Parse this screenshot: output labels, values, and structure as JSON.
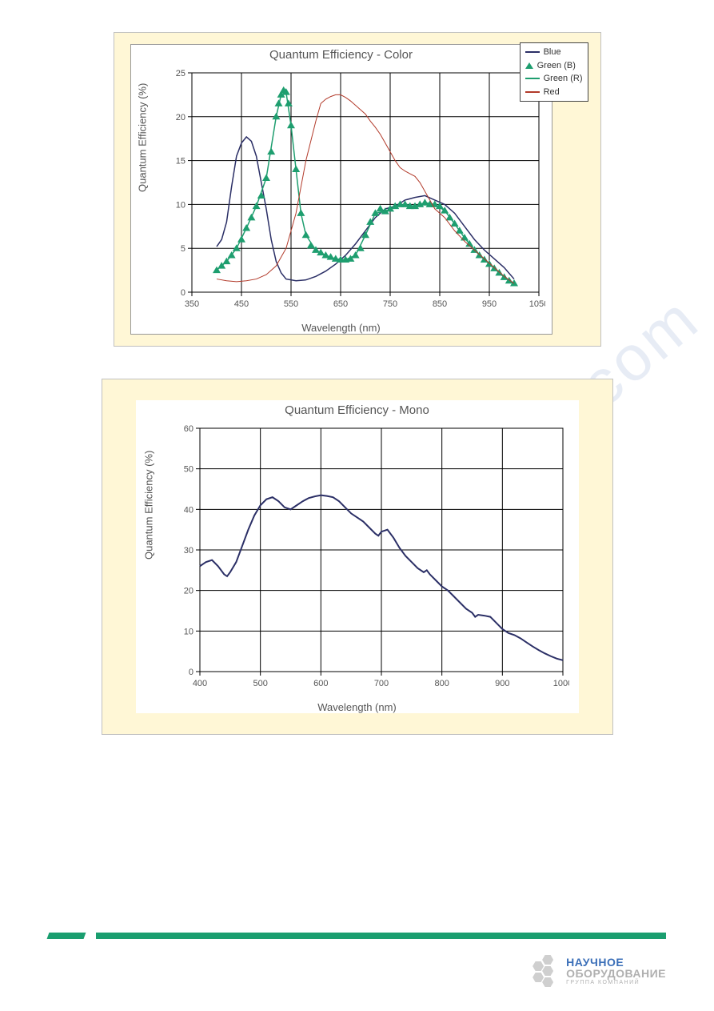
{
  "chart1": {
    "type": "line",
    "title": "Quantum Efficiency - Color",
    "xlabel": "Wavelength (nm)",
    "ylabel": "Quantum Efficiency (%)",
    "title_fontsize": 15,
    "label_fontsize": 13,
    "tick_fontsize": 11,
    "panel_bg": "#fff7d6",
    "plot_bg": "#ffffff",
    "grid_color": "#000000",
    "grid_width": 1,
    "xlim": [
      350,
      1050
    ],
    "ylim": [
      0,
      25
    ],
    "xtick_step": 100,
    "ytick_step": 5,
    "legend": {
      "position": "top-right",
      "items": [
        {
          "label": "Blue",
          "swatch": "line",
          "color": "#2b2f66"
        },
        {
          "label": "Green (B)",
          "swatch": "triangle",
          "color": "#1e9e6f"
        },
        {
          "label": "Green (R)",
          "swatch": "line",
          "color": "#1e9e6f"
        },
        {
          "label": "Red",
          "swatch": "line",
          "color": "#b23a2a"
        }
      ]
    },
    "series": {
      "Blue": {
        "type": "line",
        "color": "#2b2f66",
        "line_width": 1.5,
        "data": [
          [
            400,
            5.2
          ],
          [
            410,
            6.0
          ],
          [
            420,
            8.0
          ],
          [
            430,
            12.0
          ],
          [
            440,
            15.5
          ],
          [
            450,
            17.0
          ],
          [
            460,
            17.7
          ],
          [
            470,
            17.2
          ],
          [
            480,
            15.5
          ],
          [
            490,
            12.5
          ],
          [
            500,
            9.5
          ],
          [
            510,
            6.0
          ],
          [
            520,
            3.5
          ],
          [
            530,
            2.2
          ],
          [
            540,
            1.5
          ],
          [
            560,
            1.3
          ],
          [
            580,
            1.4
          ],
          [
            600,
            1.8
          ],
          [
            620,
            2.4
          ],
          [
            640,
            3.2
          ],
          [
            660,
            4.2
          ],
          [
            680,
            5.5
          ],
          [
            700,
            7.0
          ],
          [
            720,
            8.5
          ],
          [
            740,
            9.5
          ],
          [
            760,
            9.8
          ],
          [
            780,
            10.5
          ],
          [
            800,
            10.8
          ],
          [
            820,
            11.0
          ],
          [
            840,
            10.5
          ],
          [
            860,
            10.0
          ],
          [
            880,
            9.0
          ],
          [
            900,
            7.5
          ],
          [
            920,
            6.0
          ],
          [
            940,
            4.8
          ],
          [
            960,
            3.8
          ],
          [
            980,
            2.8
          ],
          [
            1000,
            1.5
          ]
        ]
      },
      "GreenB": {
        "type": "scatter",
        "marker": "triangle",
        "color": "#1e9e6f",
        "marker_size": 5,
        "data": [
          [
            400,
            2.5
          ],
          [
            410,
            3.0
          ],
          [
            420,
            3.5
          ],
          [
            430,
            4.2
          ],
          [
            440,
            5.0
          ],
          [
            450,
            6.0
          ],
          [
            460,
            7.3
          ],
          [
            470,
            8.5
          ],
          [
            480,
            9.8
          ],
          [
            490,
            11.0
          ],
          [
            500,
            13.0
          ],
          [
            510,
            16.0
          ],
          [
            520,
            20.0
          ],
          [
            525,
            21.5
          ],
          [
            530,
            22.5
          ],
          [
            535,
            23.0
          ],
          [
            540,
            22.8
          ],
          [
            545,
            21.5
          ],
          [
            550,
            19.0
          ],
          [
            560,
            14.0
          ],
          [
            570,
            9.0
          ],
          [
            580,
            6.5
          ],
          [
            590,
            5.3
          ],
          [
            600,
            4.8
          ],
          [
            610,
            4.5
          ],
          [
            620,
            4.2
          ],
          [
            630,
            4.0
          ],
          [
            640,
            3.8
          ],
          [
            650,
            3.7
          ],
          [
            660,
            3.7
          ],
          [
            670,
            3.8
          ],
          [
            680,
            4.2
          ],
          [
            690,
            5.0
          ],
          [
            700,
            6.5
          ],
          [
            710,
            8.0
          ],
          [
            720,
            9.0
          ],
          [
            730,
            9.5
          ],
          [
            740,
            9.2
          ],
          [
            750,
            9.5
          ],
          [
            760,
            9.8
          ],
          [
            770,
            10.0
          ],
          [
            780,
            10.0
          ],
          [
            790,
            9.8
          ],
          [
            800,
            9.8
          ],
          [
            810,
            10.0
          ],
          [
            820,
            10.2
          ],
          [
            830,
            10.0
          ],
          [
            840,
            10.0
          ],
          [
            850,
            9.8
          ],
          [
            860,
            9.3
          ],
          [
            870,
            8.5
          ],
          [
            880,
            7.8
          ],
          [
            890,
            7.0
          ],
          [
            900,
            6.2
          ],
          [
            910,
            5.5
          ],
          [
            920,
            4.8
          ],
          [
            930,
            4.2
          ],
          [
            940,
            3.7
          ],
          [
            950,
            3.2
          ],
          [
            960,
            2.7
          ],
          [
            970,
            2.2
          ],
          [
            980,
            1.7
          ],
          [
            990,
            1.3
          ],
          [
            1000,
            1.0
          ]
        ]
      },
      "GreenR": {
        "type": "line",
        "color": "#1e9e6f",
        "line_width": 1.5,
        "data": [
          [
            400,
            2.5
          ],
          [
            420,
            3.5
          ],
          [
            440,
            5.0
          ],
          [
            460,
            7.3
          ],
          [
            480,
            9.8
          ],
          [
            500,
            13.0
          ],
          [
            520,
            20.0
          ],
          [
            530,
            22.5
          ],
          [
            535,
            23.0
          ],
          [
            540,
            22.8
          ],
          [
            550,
            19.0
          ],
          [
            560,
            14.0
          ],
          [
            570,
            9.0
          ],
          [
            580,
            6.5
          ],
          [
            600,
            4.8
          ],
          [
            620,
            4.2
          ],
          [
            640,
            3.8
          ],
          [
            660,
            3.7
          ],
          [
            680,
            4.2
          ],
          [
            700,
            6.5
          ],
          [
            720,
            9.0
          ],
          [
            740,
            9.2
          ],
          [
            760,
            9.8
          ],
          [
            780,
            10.0
          ],
          [
            800,
            9.8
          ],
          [
            820,
            10.2
          ],
          [
            840,
            10.0
          ],
          [
            860,
            9.3
          ],
          [
            880,
            7.8
          ],
          [
            900,
            6.2
          ],
          [
            920,
            4.8
          ],
          [
            940,
            3.7
          ],
          [
            960,
            2.7
          ],
          [
            980,
            1.7
          ],
          [
            1000,
            1.0
          ]
        ]
      },
      "Red": {
        "type": "line",
        "color": "#b23a2a",
        "line_width": 1,
        "data": [
          [
            400,
            1.5
          ],
          [
            420,
            1.3
          ],
          [
            440,
            1.2
          ],
          [
            460,
            1.3
          ],
          [
            480,
            1.5
          ],
          [
            500,
            2.0
          ],
          [
            520,
            3.0
          ],
          [
            540,
            5.0
          ],
          [
            560,
            9.0
          ],
          [
            580,
            15.0
          ],
          [
            600,
            19.5
          ],
          [
            610,
            21.5
          ],
          [
            620,
            22.0
          ],
          [
            630,
            22.3
          ],
          [
            640,
            22.5
          ],
          [
            650,
            22.5
          ],
          [
            660,
            22.2
          ],
          [
            670,
            21.8
          ],
          [
            680,
            21.3
          ],
          [
            690,
            20.8
          ],
          [
            700,
            20.3
          ],
          [
            710,
            19.5
          ],
          [
            720,
            18.8
          ],
          [
            730,
            18.0
          ],
          [
            740,
            17.0
          ],
          [
            750,
            16.0
          ],
          [
            760,
            15.0
          ],
          [
            770,
            14.2
          ],
          [
            780,
            13.8
          ],
          [
            790,
            13.5
          ],
          [
            800,
            13.2
          ],
          [
            810,
            12.5
          ],
          [
            820,
            11.5
          ],
          [
            830,
            10.5
          ],
          [
            840,
            9.5
          ],
          [
            860,
            8.5
          ],
          [
            880,
            7.0
          ],
          [
            900,
            5.8
          ],
          [
            920,
            4.8
          ],
          [
            940,
            3.8
          ],
          [
            960,
            2.8
          ],
          [
            980,
            1.8
          ],
          [
            1000,
            1.0
          ]
        ]
      }
    }
  },
  "chart2": {
    "type": "line",
    "title": "Quantum Efficiency - Mono",
    "xlabel": "Wavelength (nm)",
    "ylabel": "Quantum Efficiency (%)",
    "title_fontsize": 15,
    "label_fontsize": 13,
    "tick_fontsize": 11,
    "panel_bg": "#fff7d6",
    "plot_bg": "#ffffff",
    "grid_color": "#000000",
    "grid_width": 1,
    "xlim": [
      400,
      1000
    ],
    "ylim": [
      0,
      60
    ],
    "xtick_step": 100,
    "ytick_step": 10,
    "series": {
      "Mono": {
        "type": "line",
        "color": "#2b2f66",
        "line_width": 2,
        "data": [
          [
            400,
            26.0
          ],
          [
            410,
            27.0
          ],
          [
            420,
            27.5
          ],
          [
            430,
            26.0
          ],
          [
            440,
            24.0
          ],
          [
            445,
            23.5
          ],
          [
            450,
            24.5
          ],
          [
            460,
            27.0
          ],
          [
            470,
            31.0
          ],
          [
            480,
            35.0
          ],
          [
            490,
            38.5
          ],
          [
            500,
            41.0
          ],
          [
            510,
            42.5
          ],
          [
            520,
            43.0
          ],
          [
            530,
            42.0
          ],
          [
            540,
            40.5
          ],
          [
            550,
            40.0
          ],
          [
            560,
            41.0
          ],
          [
            570,
            42.0
          ],
          [
            580,
            42.8
          ],
          [
            590,
            43.2
          ],
          [
            600,
            43.5
          ],
          [
            610,
            43.3
          ],
          [
            620,
            43.0
          ],
          [
            630,
            42.0
          ],
          [
            640,
            40.5
          ],
          [
            650,
            39.0
          ],
          [
            660,
            38.0
          ],
          [
            670,
            37.0
          ],
          [
            680,
            35.5
          ],
          [
            690,
            34.0
          ],
          [
            695,
            33.5
          ],
          [
            700,
            34.5
          ],
          [
            710,
            35.0
          ],
          [
            720,
            33.0
          ],
          [
            730,
            30.5
          ],
          [
            740,
            28.5
          ],
          [
            750,
            27.0
          ],
          [
            760,
            25.5
          ],
          [
            770,
            24.5
          ],
          [
            775,
            25.0
          ],
          [
            780,
            24.0
          ],
          [
            790,
            22.5
          ],
          [
            800,
            21.0
          ],
          [
            810,
            20.0
          ],
          [
            820,
            18.5
          ],
          [
            830,
            17.0
          ],
          [
            840,
            15.5
          ],
          [
            850,
            14.5
          ],
          [
            855,
            13.5
          ],
          [
            860,
            14.0
          ],
          [
            870,
            13.8
          ],
          [
            880,
            13.5
          ],
          [
            890,
            12.0
          ],
          [
            900,
            10.5
          ],
          [
            910,
            9.5
          ],
          [
            920,
            9.0
          ],
          [
            930,
            8.2
          ],
          [
            940,
            7.2
          ],
          [
            950,
            6.2
          ],
          [
            960,
            5.3
          ],
          [
            970,
            4.5
          ],
          [
            980,
            3.8
          ],
          [
            990,
            3.2
          ],
          [
            1000,
            2.8
          ]
        ]
      }
    }
  },
  "watermark": {
    "text": "manualshive.com",
    "color_rgba": "rgba(120,150,200,0.18)",
    "fontsize": 80,
    "rotation_deg": -40
  },
  "footer": {
    "bar_color": "#1a9e6f",
    "logo_line1": "НАУЧНОЕ",
    "logo_line2": "ОБОРУДОВАНИЕ",
    "logo_line3": "ГРУППА КОМПАНИЙ",
    "logo_text_color1": "#3b6fb8",
    "logo_text_color2": "#b0b0b0"
  }
}
